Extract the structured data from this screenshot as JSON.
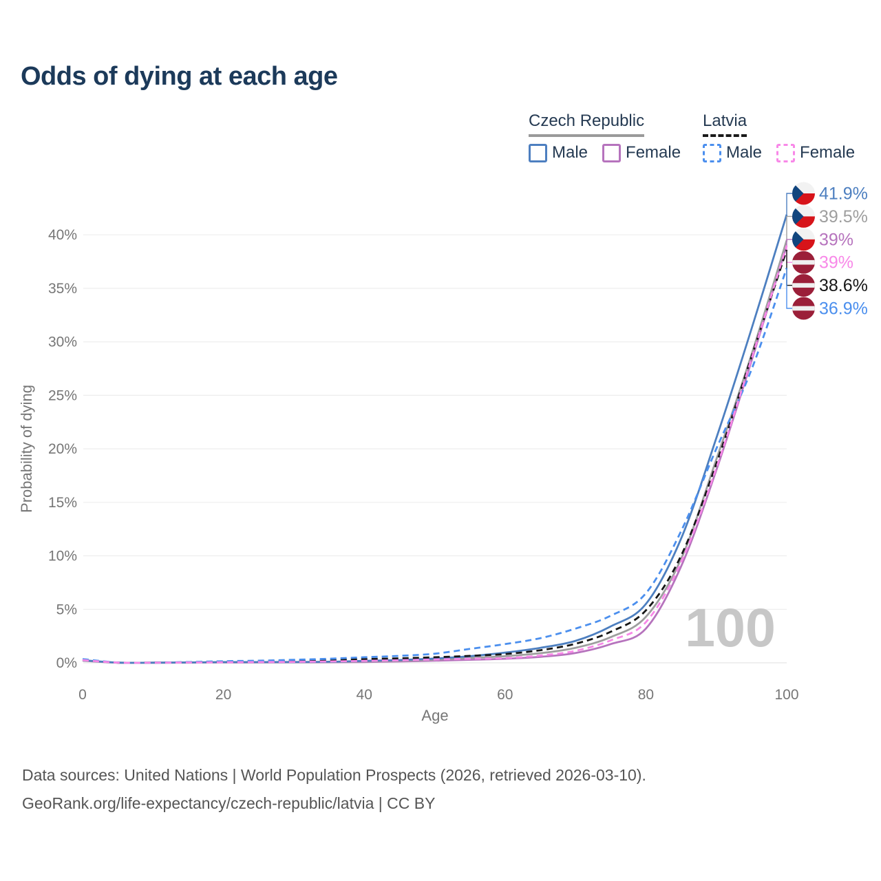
{
  "page": {
    "title": "Odds of dying at each age",
    "watermark": "100",
    "footer_line1": "Data sources: United Nations | World Population Prospects (2026, retrieved 2026-03-10).",
    "footer_line2": "GeoRank.org/life-expectancy/czech-republic/latvia | CC BY"
  },
  "legend": {
    "groups": [
      {
        "label": "Czech Republic",
        "line_style": "solid",
        "underline_color": "#9a9a9a",
        "items": [
          {
            "label": "Male",
            "color": "#4d7fc0"
          },
          {
            "label": "Female",
            "color": "#b673bd"
          }
        ]
      },
      {
        "label": "Latvia",
        "line_style": "dashed",
        "underline_color": "#1a1a1a",
        "items": [
          {
            "label": "Male",
            "color": "#4b8fee"
          },
          {
            "label": "Female",
            "color": "#f888e8"
          }
        ]
      }
    ]
  },
  "chart_data": {
    "type": "line",
    "title": "Odds of dying at each age",
    "xlabel": "Age",
    "ylabel": "Probability of dying",
    "xlim": [
      0,
      100
    ],
    "ylim": [
      0,
      44
    ],
    "x_ticks": [
      0,
      20,
      40,
      60,
      80,
      100
    ],
    "y_ticks_percent": [
      0,
      5,
      10,
      15,
      20,
      25,
      30,
      35,
      40
    ],
    "grid": true,
    "ages": [
      0,
      5,
      10,
      15,
      20,
      25,
      30,
      35,
      40,
      45,
      50,
      55,
      60,
      65,
      70,
      75,
      80,
      85,
      90,
      95,
      100
    ],
    "series": [
      {
        "name": "Czech Republic Male",
        "slug": "czech-male",
        "color": "#4d7fc0",
        "dashed": false,
        "flag": "cz",
        "end_label": "41.9%",
        "values": [
          0.25,
          0.02,
          0.01,
          0.03,
          0.07,
          0.07,
          0.08,
          0.1,
          0.18,
          0.26,
          0.4,
          0.62,
          0.95,
          1.4,
          2.05,
          3.4,
          5.5,
          11.6,
          21.0,
          31.2,
          41.9
        ]
      },
      {
        "name": "Czech Republic All",
        "slug": "czech-all",
        "color": "#9e9e9e",
        "dashed": false,
        "flag": "cz",
        "end_label": "39.5%",
        "values": [
          0.22,
          0.02,
          0.01,
          0.02,
          0.05,
          0.05,
          0.06,
          0.08,
          0.13,
          0.19,
          0.3,
          0.45,
          0.62,
          0.9,
          1.4,
          2.4,
          4.3,
          9.7,
          19.0,
          28.8,
          39.5
        ]
      },
      {
        "name": "Czech Republic Female",
        "slug": "czech-female",
        "color": "#b673bd",
        "dashed": false,
        "flag": "cz",
        "end_label": "39%",
        "values": [
          0.2,
          0.01,
          0.01,
          0.02,
          0.03,
          0.03,
          0.04,
          0.05,
          0.08,
          0.13,
          0.2,
          0.28,
          0.38,
          0.56,
          0.92,
          1.75,
          3.2,
          9.0,
          18.0,
          28.2,
          39.0
        ]
      },
      {
        "name": "Latvia Female",
        "slug": "latvia-female",
        "color": "#f888e8",
        "dashed": true,
        "flag": "lv",
        "end_label": "39%",
        "values": [
          0.26,
          0.02,
          0.01,
          0.03,
          0.05,
          0.07,
          0.09,
          0.13,
          0.18,
          0.24,
          0.31,
          0.38,
          0.44,
          0.68,
          1.12,
          2.1,
          3.8,
          9.4,
          18.2,
          28.4,
          39.0
        ]
      },
      {
        "name": "Latvia All",
        "slug": "latvia-all",
        "color": "#161616",
        "dashed": true,
        "flag": "lv",
        "end_label": "38.6%",
        "values": [
          0.3,
          0.02,
          0.02,
          0.05,
          0.1,
          0.13,
          0.18,
          0.26,
          0.35,
          0.42,
          0.52,
          0.65,
          0.82,
          1.18,
          1.78,
          2.9,
          4.9,
          10.0,
          18.6,
          28.6,
          38.6
        ]
      },
      {
        "name": "Latvia Male",
        "slug": "latvia-male",
        "color": "#4b8fee",
        "dashed": true,
        "flag": "lv",
        "end_label": "36.9%",
        "values": [
          0.35,
          0.03,
          0.02,
          0.07,
          0.15,
          0.2,
          0.28,
          0.38,
          0.52,
          0.65,
          0.85,
          1.3,
          1.75,
          2.3,
          3.2,
          4.4,
          6.5,
          12.3,
          20.0,
          27.4,
          36.9
        ]
      }
    ],
    "legend_position": "top-right",
    "flag_colors": {
      "cz_blue": "#11457e",
      "cz_red": "#d7141a",
      "cz_white": "#f2f2f2",
      "lv_red": "#9b1f39",
      "lv_white": "#efefef"
    }
  }
}
